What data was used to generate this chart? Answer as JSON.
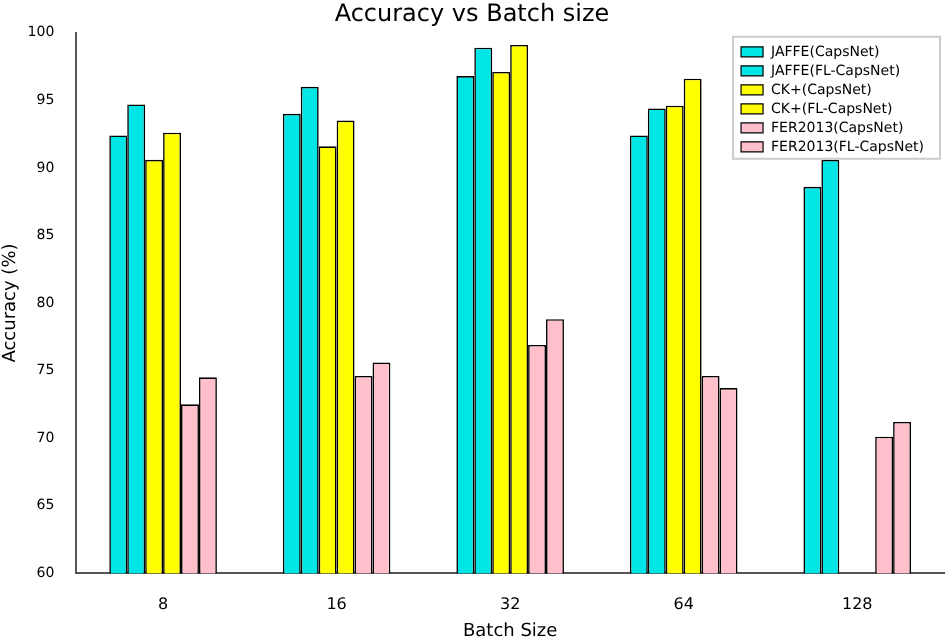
{
  "chart_data": {
    "type": "bar",
    "title": "Accuracy vs Batch size",
    "xlabel": "Batch Size",
    "ylabel": "Accuracy (%)",
    "categories": [
      "8",
      "16",
      "32",
      "64",
      "128"
    ],
    "series": [
      {
        "name": "JAFFE(CapsNet)",
        "color": "#00e5e5",
        "values": [
          92.4,
          94,
          96.8,
          92.4,
          88.6
        ]
      },
      {
        "name": "JAFFE(FL-CapsNet)",
        "color": "#00e5e5",
        "values": [
          94.7,
          96,
          98.9,
          94.4,
          90.6
        ]
      },
      {
        "name": "CK+(CapsNet)",
        "color": "#ffff00",
        "values": [
          90.6,
          91.6,
          97.1,
          94.6,
          null
        ]
      },
      {
        "name": "CK+(FL-CapsNet)",
        "color": "#ffff00",
        "values": [
          92.6,
          93.5,
          99.1,
          96.6,
          null
        ]
      },
      {
        "name": "FER2013(CapsNet)",
        "color": "#ffc0cb",
        "values": [
          72.5,
          74.6,
          76.9,
          74.6,
          70.1
        ]
      },
      {
        "name": "FER2013(FL-CapsNet)",
        "color": "#ffc0cb",
        "values": [
          74.5,
          75.6,
          78.8,
          73.7,
          71.2
        ]
      }
    ],
    "ylim": [
      60,
      100
    ],
    "yticks": [
      60,
      65,
      70,
      75,
      80,
      85,
      90,
      95,
      100
    ],
    "grid": false,
    "legend": "top right"
  }
}
